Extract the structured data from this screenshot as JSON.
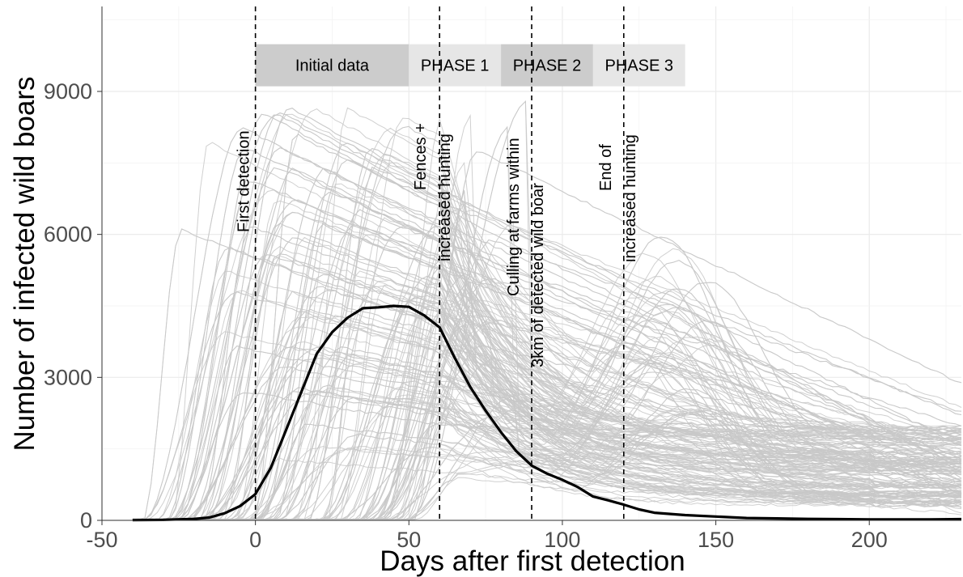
{
  "chart_data": {
    "type": "line",
    "title": "",
    "xlabel": "Days after first detection",
    "ylabel": "Number of infected wild boars",
    "xlim": [
      -50,
      230
    ],
    "ylim": [
      0,
      10500
    ],
    "x_ticks": [
      -50,
      0,
      50,
      100,
      150,
      200
    ],
    "y_ticks": [
      0,
      3000,
      6000,
      9000
    ],
    "grid": true,
    "background_simulation_color": "#c8c8c8",
    "mean_line_color": "#000000",
    "vlines": [
      {
        "x": 0,
        "label": "First detection"
      },
      {
        "x": 60,
        "label": "Fences + increased hunting"
      },
      {
        "x": 90,
        "label": "Culling at farms within 3km of detected wild boar"
      },
      {
        "x": 120,
        "label": "End of increased hunting"
      }
    ],
    "vline_text": {
      "v0": [
        "First detection"
      ],
      "v60": [
        "Fences +",
        "increased hunting"
      ],
      "v90": [
        "Culling at farms within",
        "3km of detected wild boar"
      ],
      "v120": [
        "End of",
        "increased hunting"
      ]
    },
    "phases": [
      {
        "label": "Initial data",
        "start": 0,
        "end": 50,
        "color": "#cccccc"
      },
      {
        "label": "PHASE 1",
        "start": 50,
        "end": 80,
        "color": "#e6e6e6"
      },
      {
        "label": "PHASE 2",
        "start": 80,
        "end": 110,
        "color": "#cccccc"
      },
      {
        "label": "PHASE 3",
        "start": 110,
        "end": 140,
        "color": "#e6e6e6"
      }
    ],
    "series": [
      {
        "values_x": [
          -40,
          -30,
          -20,
          -15,
          -10,
          -5,
          0,
          5,
          10,
          15,
          20,
          25,
          30,
          35,
          40,
          45,
          50,
          55,
          60,
          65,
          70,
          75,
          80,
          85,
          90,
          95,
          100,
          105,
          110,
          115,
          120,
          125,
          130,
          140,
          150,
          160,
          170,
          180,
          190,
          200,
          210,
          220,
          230
        ],
        "values_y": [
          5,
          10,
          30,
          60,
          150,
          300,
          550,
          1100,
          1900,
          2700,
          3500,
          3950,
          4250,
          4450,
          4470,
          4500,
          4480,
          4300,
          4050,
          3400,
          2800,
          2300,
          1850,
          1450,
          1150,
          980,
          850,
          700,
          500,
          420,
          330,
          230,
          160,
          110,
          80,
          50,
          40,
          30,
          25,
          20,
          20,
          20,
          25
        ]
      }
    ]
  }
}
